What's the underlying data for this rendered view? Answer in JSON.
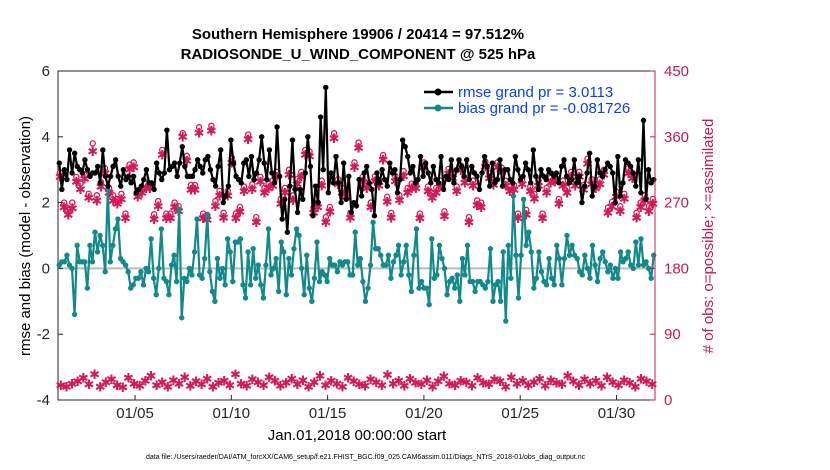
{
  "chart_data": {
    "type": "line",
    "title_line1": "Southern Hemisphere 19906 / 20414 = 97.512%",
    "title_line2": "RADIOSONDE_U_WIND_COMPONENT @ 525 hPa",
    "xlabel": "Jan.01,2018 00:00:00 start",
    "ylabel_left": "rmse and bias (model - observation)",
    "ylabel_right": "# of obs: o=possible; ×=assimilated",
    "footnote": "data file: /Users/raeder/DAI/ATM_forcXX/CAM6_setup/f.e21.FHIST_BGC.f09_025.CAM6assim.011/Diags_NTrS_2018-01/obs_diag_output.nc",
    "x_day_range": [
      1,
      32
    ],
    "x_ticks": [
      {
        "day": 5,
        "label": "01/05"
      },
      {
        "day": 10,
        "label": "01/10"
      },
      {
        "day": 15,
        "label": "01/15"
      },
      {
        "day": 20,
        "label": "01/20"
      },
      {
        "day": 25,
        "label": "01/25"
      },
      {
        "day": 30,
        "label": "01/30"
      }
    ],
    "ylim_left": [
      -4,
      6
    ],
    "yticks_left": [
      "-4",
      "-2",
      "0",
      "2",
      "4",
      "6"
    ],
    "ylim_right": [
      0,
      450
    ],
    "yticks_right": [
      "0",
      "90",
      "180",
      "270",
      "360",
      "450"
    ],
    "colors": {
      "rmse": "#000000",
      "bias": "#138a8a",
      "obs": "#d6175a",
      "right_axis": "#c8185a",
      "zero_line": "#bdbdbd",
      "legend_text": "#0a3ef0"
    },
    "series": [
      {
        "name": "rmse",
        "legend": "rmse grand pr = 3.0113",
        "values": [
          3.2,
          2.4,
          3.0,
          2.7,
          3.6,
          2.9,
          3.5,
          3.1,
          3.0,
          2.9,
          3.3,
          3.0,
          2.8,
          2.9,
          2.9,
          3.1,
          2.6,
          3.6,
          2.8,
          2.5,
          2.8,
          3.1,
          3.3,
          2.8,
          2.5,
          3.0,
          2.7,
          2.8,
          2.6,
          2.8,
          2.3,
          2.4,
          2.5,
          2.7,
          3.0,
          2.6,
          2.6,
          2.4,
          3.2,
          2.9,
          2.7,
          2.9,
          4.2,
          3.0,
          3.1,
          3.2,
          2.8,
          3.2,
          3.7,
          3.1,
          2.8,
          2.8,
          2.8,
          3.0,
          3.3,
          3.1,
          2.9,
          3.3,
          3.4,
          3.0,
          2.7,
          2.5,
          3.1,
          3.6,
          2.0,
          2.2,
          2.5,
          3.9,
          3.2,
          2.8,
          2.7,
          2.6,
          3.2,
          3.3,
          2.8,
          3.4,
          2.7,
          2.9,
          3.3,
          4.0,
          3.2,
          2.7,
          3.6,
          2.9,
          2.6,
          4.3,
          2.8,
          1.5,
          2.1,
          1.1,
          2.5,
          3.9,
          2.4,
          1.7,
          2.4,
          2.1,
          2.9,
          4.0,
          3.1,
          1.6,
          2.5,
          2.0,
          4.6,
          3.0,
          5.5,
          2.3,
          2.9,
          2.6,
          3.4,
          2.6,
          2.0,
          3.2,
          2.1,
          2.8,
          1.7,
          2.0,
          1.9,
          2.7,
          2.2,
          2.9,
          3.1,
          2.6,
          2.4,
          1.6,
          2.9,
          2.6,
          3.0,
          2.7,
          2.5,
          3.2,
          2.9,
          3.0,
          2.3,
          2.7,
          3.9,
          3.7,
          3.4,
          2.9,
          3.1,
          2.6,
          2.7,
          3.4,
          2.8,
          3.2,
          2.9,
          2.6,
          3.1,
          2.7,
          2.6,
          3.4,
          2.4,
          2.8,
          2.7,
          3.3,
          2.6,
          3.0,
          3.3,
          3.1,
          2.8,
          3.3,
          2.7,
          3.1,
          2.9,
          2.8,
          2.4,
          2.9,
          3.4,
          3.1,
          2.5,
          3.2,
          2.6,
          2.7,
          3.3,
          2.5,
          3.0,
          3.0,
          2.7,
          2.6,
          3.4,
          3.0,
          2.7,
          2.8,
          3.2,
          3.0,
          2.6,
          3.6,
          2.8,
          2.4,
          3.0,
          2.8,
          2.7,
          3.0,
          2.9,
          2.8,
          2.9,
          2.6,
          3.1,
          3.3,
          2.8,
          2.6,
          2.7,
          3.3,
          2.6,
          2.8,
          2.0,
          2.5,
          2.9,
          3.5,
          2.2,
          2.5,
          3.3,
          2.9,
          2.8,
          3.0,
          3.2,
          3.1,
          2.9,
          2.0,
          3.4,
          2.2,
          2.6,
          3.3,
          3.2,
          3.1,
          2.9,
          2.5,
          3.3,
          2.3,
          4.5,
          2.1,
          3.0,
          2.6,
          2.7
        ]
      },
      {
        "name": "bias",
        "legend": "bias grand pr = -0.081726",
        "values": [
          0.1,
          0.2,
          0.2,
          0.4,
          0.1,
          0.0,
          -1.4,
          0.7,
          0.2,
          0.2,
          0.2,
          -0.6,
          0.7,
          0.2,
          1.1,
          0.5,
          1.0,
          0.7,
          -0.1,
          2.4,
          0.2,
          0.7,
          1.2,
          1.5,
          0.3,
          0.2,
          0.1,
          -0.1,
          -0.6,
          -0.5,
          -0.3,
          -0.3,
          -0.1,
          -0.5,
          0.0,
          -0.1,
          0.9,
          -0.3,
          -0.8,
          0.0,
          1.2,
          -0.3,
          -0.4,
          -0.8,
          0.1,
          0.4,
          -0.4,
          1.8,
          -1.5,
          -0.3,
          -0.4,
          0.0,
          -0.2,
          0.5,
          1.5,
          -0.2,
          -0.3,
          0.3,
          1.6,
          -0.1,
          -0.7,
          -1.0,
          0.3,
          -0.3,
          0.0,
          -0.5,
          0.9,
          0.5,
          -0.4,
          0.8,
          0.8,
          0.9,
          -0.5,
          -0.9,
          0.5,
          -0.5,
          0.6,
          -0.3,
          0.1,
          -0.5,
          -0.9,
          0.1,
          1.2,
          -0.2,
          0.0,
          0.3,
          -0.7,
          0.8,
          0.5,
          -0.8,
          0.3,
          -0.2,
          0.6,
          1.2,
          1.0,
          0.0,
          -0.8,
          0.4,
          -0.6,
          -1.0,
          -0.3,
          0.8,
          -0.4,
          -0.1,
          -0.2,
          -0.4,
          0.3,
          0.1,
          0.1,
          -0.1,
          0.2,
          0.1,
          0.2,
          0.2,
          -0.2,
          -0.2,
          1.1,
          0.1,
          0.3,
          -0.4,
          -1.0,
          -0.6,
          0.1,
          1.4,
          0.6,
          0.6,
          0.4,
          0.1,
          0.1,
          0.4,
          -0.3,
          0.2,
          0.4,
          0.7,
          -0.2,
          0.2,
          0.7,
          -0.2,
          -0.7,
          0.4,
          1.2,
          -0.6,
          -0.4,
          -0.6,
          -0.6,
          -1.1,
          0.9,
          -0.3,
          -0.2,
          0.7,
          0.3,
          0.0,
          -0.8,
          -0.4,
          -0.3,
          -0.6,
          -0.2,
          -1.0,
          0.3,
          -0.2,
          0.7,
          -0.4,
          -0.4,
          -0.7,
          -0.4,
          -0.4,
          -0.5,
          -0.6,
          -0.4,
          0.6,
          -1.0,
          -0.5,
          -0.4,
          -1.0,
          0.5,
          -1.6,
          0.7,
          -0.3,
          2.2,
          0.4,
          -0.9,
          0.4,
          2.1,
          0.7,
          1.1,
          0.5,
          -0.6,
          -0.3,
          0.5,
          -0.1,
          -0.4,
          -0.5,
          0.3,
          -0.3,
          -0.5,
          0.7,
          0.3,
          -0.5,
          0.3,
          1.0,
          0.4,
          0.7,
          0.4,
          0.3,
          -0.1,
          -0.2,
          0.4,
          0.0,
          -0.3,
          0.7,
          0.1,
          -0.4,
          0.3,
          0.5,
          0.2,
          -0.1,
          0.1,
          -0.3,
          0.0,
          -0.3,
          0.5,
          0.2,
          0.3,
          0.5,
          0.1,
          0.0,
          0.8,
          0.1,
          0.9,
          0.1,
          0.2,
          0.0,
          -0.3,
          0.4
        ]
      },
      {
        "name": "obs_possible",
        "legend": "",
        "values": [
          311,
          270,
          260,
          270,
          305,
          296,
          308,
          282,
          351,
          280,
          298,
          317,
          290,
          280,
          275,
          282,
          255,
          322,
          325,
          285,
          290,
          296,
          296,
          254,
          272,
          342,
          255,
          255,
          270,
          265,
          365,
          334,
          294,
          294,
          373,
          255,
          253,
          375,
          272,
          286,
          256,
          286,
          331,
          255,
          264,
          292,
          363,
          295,
          250,
          305,
          290,
          296,
          300,
          312,
          275,
          290,
          315,
          280,
          302,
          312,
          342,
          340,
          263,
          270,
          300,
          250,
          264,
          365,
          302,
          290,
          285,
          256,
          325,
          352,
          305,
          296,
          270,
          306,
          300,
          335,
          278,
          256,
          306,
          280,
          313,
          290,
          296,
          296,
          255,
          325,
          292,
          283,
          290,
          300,
          258,
          316,
          310,
          292,
          321,
          304,
          250,
          300,
          273,
          270,
          326,
          310,
          301,
          325,
          318,
          300,
          292,
          294,
          255,
          302,
          260,
          292,
          282,
          300,
          255,
          290,
          304,
          305,
          275,
          300,
          290,
          312,
          300,
          312,
          294,
          330,
          302,
          296,
          302,
          315,
          263,
          271,
          285,
          265,
          282,
          317,
          310,
          256,
          270,
          280,
          265,
          275
        ]
      },
      {
        "name": "obs_assimilated",
        "legend": "",
        "values": [
          305,
          263,
          253,
          262,
          298,
          288,
          302,
          276,
          340,
          272,
          291,
          310,
          283,
          272,
          268,
          274,
          248,
          315,
          318,
          278,
          283,
          289,
          289,
          247,
          265,
          335,
          248,
          248,
          263,
          258,
          360,
          327,
          287,
          287,
          365,
          248,
          246,
          368,
          265,
          279,
          249,
          279,
          324,
          248,
          257,
          285,
          356,
          288,
          243,
          298,
          283,
          289,
          293,
          305,
          268,
          283,
          308,
          273,
          295,
          305,
          335,
          333,
          256,
          263,
          293,
          243,
          257,
          358,
          295,
          283,
          278,
          249,
          318,
          345,
          298,
          289,
          263,
          299,
          293,
          328,
          271,
          249,
          299,
          273,
          306,
          283,
          289,
          289,
          248,
          318,
          285,
          276,
          283,
          293,
          251,
          309,
          303,
          285,
          314,
          297,
          243,
          293,
          266,
          263,
          319,
          303,
          294,
          318,
          311,
          293,
          285,
          287,
          248,
          295,
          253,
          285,
          275,
          293,
          248,
          283,
          297,
          298,
          268,
          293,
          283,
          305,
          293,
          305,
          287,
          323,
          295,
          289,
          295,
          308,
          256,
          264,
          278,
          258,
          275,
          310,
          303,
          249,
          263,
          273,
          258,
          268
        ]
      },
      {
        "name": "obs_low_possible",
        "legend": "",
        "values": [
          20,
          18,
          22,
          25,
          30,
          21,
          35,
          18,
          24,
          28,
          20,
          17,
          30,
          22,
          19,
          26,
          33,
          20,
          24,
          18,
          27,
          22,
          31,
          19,
          25,
          21,
          29,
          18,
          23,
          26,
          20,
          35,
          22,
          19,
          28,
          24,
          20,
          31,
          26,
          19,
          23,
          29,
          21,
          27,
          18,
          24,
          33,
          20,
          26,
          22,
          18,
          30,
          25,
          21,
          19,
          28,
          24,
          20,
          34,
          22,
          26,
          19,
          29,
          23,
          21,
          27,
          18,
          25,
          32,
          22,
          20,
          26,
          24,
          19,
          30,
          23,
          21,
          28,
          25,
          18,
          31,
          22,
          26,
          20,
          24,
          29,
          19,
          27,
          23,
          21,
          33,
          25,
          20,
          28,
          22,
          26,
          19,
          31,
          24,
          20,
          27,
          23,
          18,
          29,
          25,
          21
        ]
      }
    ]
  }
}
